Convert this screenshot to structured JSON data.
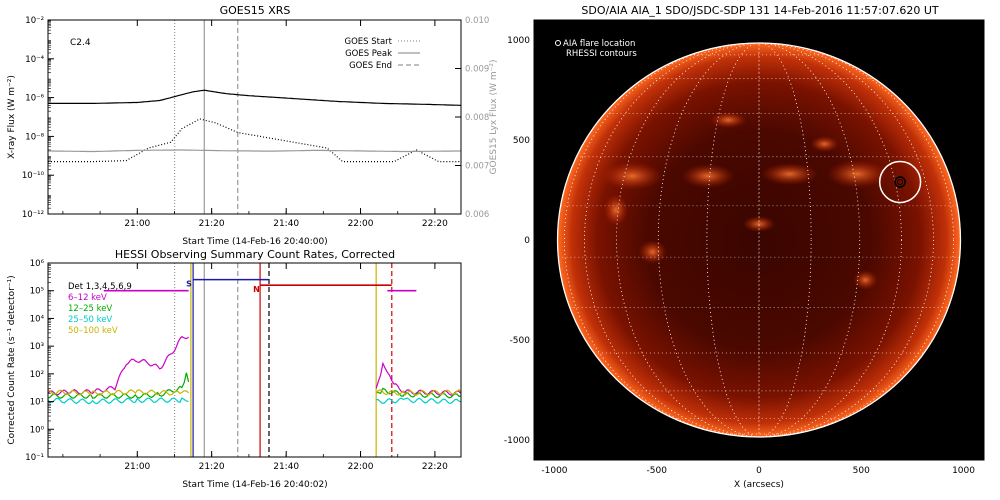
{
  "chart_data": [
    {
      "id": "goes",
      "type": "line",
      "title": "GOES15 XRS",
      "xlabel": "Start Time (14-Feb-16 20:40:00)",
      "ylabel": "X-ray Flux (W m⁻²)",
      "ylabel_right": "GOES15 Lyx Flux (W m⁻²)",
      "annotation": "C2.4",
      "xlim_minutes": [
        20.6,
        22.45
      ],
      "x_ticks": [
        21.0,
        21.333,
        21.667,
        22.0,
        22.333
      ],
      "x_tick_labels": [
        "21:00",
        "21:20",
        "21:40",
        "22:00",
        "22:20"
      ],
      "y_log": true,
      "ylim": [
        -12,
        -2
      ],
      "y_ticks": [
        -2,
        -4,
        -6,
        -8,
        -10,
        -12
      ],
      "y_tick_labels": [
        "10⁻²",
        "10⁻⁴",
        "10⁻⁶",
        "10⁻⁸",
        "10⁻¹⁰",
        "10⁻¹²"
      ],
      "ylim_right": [
        0.006,
        0.01
      ],
      "y_right_ticks": [
        0.006,
        0.007,
        0.008,
        0.009,
        0.01
      ],
      "y_right_tick_labels": [
        "0.006",
        "0.007",
        "0.008",
        "0.009",
        "0.010"
      ],
      "vlines": [
        {
          "name": "GOES Start",
          "x": 21.167,
          "style": "dotted",
          "color": "#999999"
        },
        {
          "name": "GOES Peak",
          "x": 21.3,
          "style": "solid",
          "color": "#999999"
        },
        {
          "name": "GOES End",
          "x": 21.45,
          "style": "dashed",
          "color": "#999999"
        }
      ],
      "series": [
        {
          "name": "long",
          "color": "#000000",
          "style": "solid",
          "x": [
            20.6,
            20.8,
            21.0,
            21.1,
            21.2,
            21.25,
            21.3,
            21.4,
            21.5,
            21.7,
            21.9,
            22.1,
            22.3,
            22.45
          ],
          "y": [
            -6.3,
            -6.3,
            -6.25,
            -6.15,
            -5.85,
            -5.7,
            -5.62,
            -5.8,
            -5.9,
            -6.05,
            -6.2,
            -6.3,
            -6.35,
            -6.4
          ]
        },
        {
          "name": "short",
          "color": "#000000",
          "style": "dotted",
          "x": [
            20.6,
            20.8,
            20.95,
            21.05,
            21.15,
            21.2,
            21.28,
            21.35,
            21.45,
            21.55,
            21.7,
            21.85,
            21.92,
            22.0,
            22.15,
            22.25,
            22.35,
            22.45
          ],
          "y": [
            -9.3,
            -9.3,
            -9.25,
            -8.6,
            -8.3,
            -7.6,
            -7.1,
            -7.3,
            -7.8,
            -8.0,
            -8.3,
            -8.6,
            -9.3,
            -9.3,
            -9.3,
            -8.7,
            -9.3,
            -9.3
          ]
        },
        {
          "name": "lyman",
          "color": "#999999",
          "style": "solid",
          "x": [
            20.6,
            20.8,
            21.0,
            21.2,
            21.4,
            21.6,
            21.8,
            22.0,
            22.2,
            22.45
          ],
          "y": [
            -8.75,
            -8.78,
            -8.72,
            -8.7,
            -8.74,
            -8.76,
            -8.72,
            -8.75,
            -8.78,
            -8.75
          ]
        }
      ],
      "legend": [
        "GOES Start",
        "GOES Peak",
        "GOES End"
      ],
      "legend_position": "top-right"
    },
    {
      "id": "hessi",
      "type": "line",
      "title": "HESSI Observing Summary Count Rates, Corrected",
      "xlabel": "Start Time (14-Feb-16 20:40:02)",
      "ylabel": "Corrected Count Rate (s⁻¹ detector⁻¹)",
      "xlim_minutes": [
        20.6,
        22.45
      ],
      "x_ticks": [
        21.0,
        21.333,
        21.667,
        22.0,
        22.333
      ],
      "x_tick_labels": [
        "21:00",
        "21:20",
        "21:40",
        "22:00",
        "22:20"
      ],
      "y_log": true,
      "ylim": [
        -1,
        6
      ],
      "y_ticks": [
        6,
        5,
        4,
        3,
        2,
        1,
        0,
        -1
      ],
      "y_tick_labels": [
        "10⁶",
        "10⁵",
        "10⁴",
        "10³",
        "10²",
        "10¹",
        "10⁰",
        "10⁻¹"
      ],
      "legend_title": "Det 1,3,4,5,6,9",
      "vlines": [
        {
          "name": "goes-start",
          "x": 21.167,
          "style": "dotted",
          "color": "#999999"
        },
        {
          "name": "goes-peak",
          "x": 21.3,
          "style": "solid",
          "color": "#999999"
        },
        {
          "name": "goes-end",
          "x": 21.45,
          "style": "dashed",
          "color": "#999999"
        },
        {
          "name": "saa-start",
          "x": 21.25,
          "style": "solid",
          "color": "#1a1aa8"
        },
        {
          "name": "saa-end",
          "x": 21.59,
          "style": "dashed",
          "color": "#000000"
        },
        {
          "name": "night-start",
          "x": 21.55,
          "style": "solid",
          "color": "#cc0000"
        },
        {
          "name": "night-end",
          "x": 22.14,
          "style": "dashed",
          "color": "#cc0000"
        },
        {
          "name": "data-gap-start",
          "x": 21.24,
          "style": "solid",
          "color": "#c8b400"
        },
        {
          "name": "data-gap-end",
          "x": 22.07,
          "style": "solid",
          "color": "#c8b400"
        }
      ],
      "bars": [
        {
          "name": "attenuator",
          "color": "#cc00cc",
          "x0": 20.85,
          "x1": 21.23,
          "y": 5.0
        },
        {
          "name": "attenuator-end",
          "color": "#cc00cc",
          "x0": 22.12,
          "x1": 22.25,
          "y": 5.0
        },
        {
          "name": "S",
          "label": "S",
          "color": "#1a1aa8",
          "x0": 21.25,
          "x1": 21.59,
          "y": 5.4
        },
        {
          "name": "N",
          "label": "N",
          "color": "#cc0000",
          "x0": 21.55,
          "x1": 22.14,
          "y": 5.2
        }
      ],
      "series": [
        {
          "name": "6-12 keV",
          "color": "#cc00cc",
          "x": [
            20.6,
            20.7,
            20.8,
            20.9,
            20.95,
            21.0,
            21.05,
            21.1,
            21.15,
            21.2,
            21.24,
            22.07,
            22.1,
            22.12,
            22.15,
            22.2,
            22.45
          ],
          "y": [
            1.3,
            1.35,
            1.35,
            1.5,
            2.4,
            2.5,
            2.4,
            2.2,
            2.7,
            3.3,
            3.4,
            1.4,
            2.3,
            2.0,
            1.6,
            1.35,
            1.3
          ]
        },
        {
          "name": "12-25 keV",
          "color": "#00aa00",
          "x": [
            20.6,
            20.8,
            21.0,
            21.1,
            21.2,
            21.22,
            21.24,
            22.07,
            22.1,
            22.2,
            22.45
          ],
          "y": [
            1.2,
            1.2,
            1.2,
            1.25,
            1.5,
            2.0,
            1.5,
            1.25,
            1.4,
            1.25,
            1.2
          ]
        },
        {
          "name": "25-50 keV",
          "color": "#00cccc",
          "x": [
            20.6,
            20.8,
            21.0,
            21.2,
            21.24,
            22.07,
            22.2,
            22.45
          ],
          "y": [
            1.05,
            1.0,
            1.05,
            1.05,
            1.1,
            1.0,
            1.05,
            1.0
          ]
        },
        {
          "name": "50-100 keV",
          "color": "#c8b400",
          "x": [
            20.6,
            20.8,
            21.0,
            21.2,
            21.24,
            22.07,
            22.2,
            22.45
          ],
          "y": [
            1.35,
            1.3,
            1.35,
            1.3,
            1.35,
            1.35,
            1.3,
            1.35
          ]
        }
      ],
      "legend": [
        "6–12 keV",
        "12–25 keV",
        "25–50 keV",
        "50–100 keV"
      ],
      "legend_position": "top-left"
    },
    {
      "id": "aia",
      "type": "image",
      "title": "SDO/AIA AIA_1 SDO/JSDC-SDP 131 14-Feb-2016 11:57:07.620 UT",
      "xlabel": "X (arcsecs)",
      "ylabel": "",
      "xlim": [
        -1100,
        1100
      ],
      "ylim": [
        -1100,
        1100
      ],
      "x_ticks": [
        -1000,
        -500,
        0,
        500,
        1000
      ],
      "y_ticks": [
        1000,
        500,
        0,
        -500,
        -1000
      ],
      "solar_radius_arcsec": 985,
      "flare_location_arcsec": [
        690,
        290
      ],
      "flare_circle_radius_arcsec": 100,
      "legend": [
        "AIA flare location",
        "RHESSI contours"
      ],
      "legend_position": "top-left"
    }
  ]
}
